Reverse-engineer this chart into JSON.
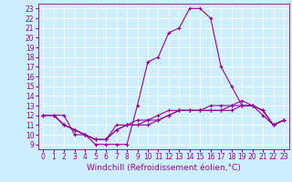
{
  "xlabel": "Windchill (Refroidissement éolien,°C)",
  "ylabel": "",
  "bg_color": "#cceeff",
  "grid_color": "#ffffff",
  "line_color": "#990099",
  "xlim": [
    -0.5,
    23.5
  ],
  "ylim": [
    8.5,
    23.5
  ],
  "yticks": [
    9,
    10,
    11,
    12,
    13,
    14,
    15,
    16,
    17,
    18,
    19,
    20,
    21,
    22,
    23
  ],
  "xticks": [
    0,
    1,
    2,
    3,
    4,
    5,
    6,
    7,
    8,
    9,
    10,
    11,
    12,
    13,
    14,
    15,
    16,
    17,
    18,
    19,
    20,
    21,
    22,
    23
  ],
  "lines": [
    {
      "x": [
        0,
        1,
        2,
        3,
        4,
        5,
        6,
        7,
        8,
        9,
        10,
        11,
        12,
        13,
        14,
        15,
        16,
        17,
        18,
        19,
        20,
        21,
        22,
        23
      ],
      "y": [
        12,
        12,
        12,
        10,
        10,
        9,
        9,
        9,
        9,
        13,
        17.5,
        18,
        20.5,
        21,
        23,
        23,
        22,
        17,
        15,
        13,
        13,
        12,
        11,
        11.5
      ]
    },
    {
      "x": [
        0,
        1,
        2,
        3,
        4,
        5,
        6,
        7,
        8,
        9,
        10,
        11,
        12,
        13,
        14,
        15,
        16,
        17,
        18,
        19,
        20,
        21,
        22,
        23
      ],
      "y": [
        12,
        12,
        11,
        10.5,
        10,
        9.5,
        9.5,
        10.5,
        11,
        11,
        11,
        11.5,
        12,
        12.5,
        12.5,
        12.5,
        12.5,
        12.5,
        13,
        13,
        13,
        12.5,
        11,
        11.5
      ]
    },
    {
      "x": [
        0,
        1,
        2,
        3,
        4,
        5,
        6,
        7,
        8,
        9,
        10,
        11,
        12,
        13,
        14,
        15,
        16,
        17,
        18,
        19,
        20,
        21,
        22,
        23
      ],
      "y": [
        12,
        12,
        11,
        10.5,
        10,
        9.5,
        9.5,
        10.5,
        11,
        11,
        11.5,
        11.5,
        12,
        12.5,
        12.5,
        12.5,
        13,
        13,
        13,
        13.5,
        13,
        12.5,
        11,
        11.5
      ]
    },
    {
      "x": [
        0,
        1,
        2,
        3,
        4,
        5,
        6,
        7,
        8,
        9,
        10,
        11,
        12,
        13,
        14,
        15,
        16,
        17,
        18,
        19,
        20,
        21,
        22,
        23
      ],
      "y": [
        12,
        12,
        11,
        10.5,
        10,
        9.5,
        9.5,
        11,
        11,
        11.5,
        11.5,
        12,
        12.5,
        12.5,
        12.5,
        12.5,
        12.5,
        12.5,
        12.5,
        13,
        13,
        12.5,
        11,
        11.5
      ]
    }
  ],
  "tick_fontsize": 5.5,
  "label_fontsize": 6.5
}
